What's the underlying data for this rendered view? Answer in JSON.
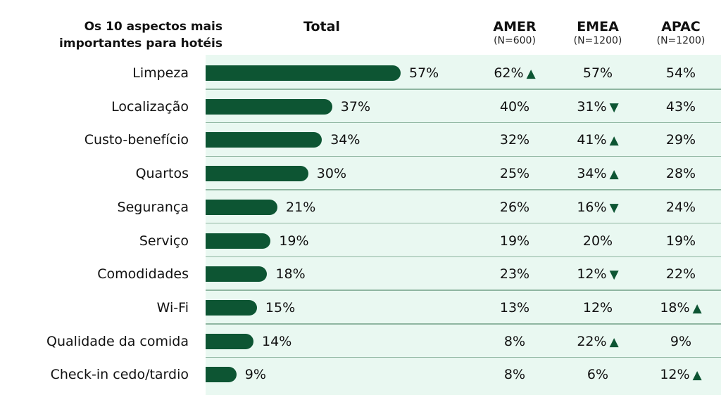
{
  "header": {
    "title_line1": "Os 10 aspectos mais",
    "title_line2": "importantes para hotéis",
    "total": "Total",
    "regions": [
      {
        "name": "AMER",
        "n": "(N=600)"
      },
      {
        "name": "EMEA",
        "n": "(N=1200)"
      },
      {
        "name": "APAC",
        "n": "(N=1200)"
      }
    ]
  },
  "chart_data": {
    "type": "bar",
    "orientation": "horizontal",
    "x_max": 100,
    "categories": [
      "Limpeza",
      "Localização",
      "Custo-benefício",
      "Quartos",
      "Segurança",
      "Serviço",
      "Comodidades",
      "Wi-Fi",
      "Qualidade da comida",
      "Check-in cedo/tardio"
    ],
    "series": [
      {
        "name": "Total",
        "values": [
          57,
          37,
          34,
          30,
          21,
          19,
          18,
          15,
          14,
          9
        ]
      }
    ],
    "bar_color": "#0d5533",
    "panel_color": "#e9f8f1",
    "rows": [
      {
        "label": "Limpeza",
        "total": "57%",
        "total_value": 57,
        "amer": "62%",
        "amer_arrow": "up",
        "emea": "57%",
        "emea_arrow": "",
        "apac": "54%",
        "apac_arrow": ""
      },
      {
        "label": "Localização",
        "total": "37%",
        "total_value": 37,
        "amer": "40%",
        "amer_arrow": "",
        "emea": "31%",
        "emea_arrow": "down",
        "apac": "43%",
        "apac_arrow": ""
      },
      {
        "label": "Custo-benefício",
        "total": "34%",
        "total_value": 34,
        "amer": "32%",
        "amer_arrow": "",
        "emea": "41%",
        "emea_arrow": "up",
        "apac": "29%",
        "apac_arrow": ""
      },
      {
        "label": "Quartos",
        "total": "30%",
        "total_value": 30,
        "amer": "25%",
        "amer_arrow": "",
        "emea": "34%",
        "emea_arrow": "up",
        "apac": "28%",
        "apac_arrow": ""
      },
      {
        "label": "Segurança",
        "total": "21%",
        "total_value": 21,
        "amer": "26%",
        "amer_arrow": "",
        "emea": "16%",
        "emea_arrow": "down",
        "apac": "24%",
        "apac_arrow": ""
      },
      {
        "label": "Serviço",
        "total": "19%",
        "total_value": 19,
        "amer": "19%",
        "amer_arrow": "",
        "emea": "20%",
        "emea_arrow": "",
        "apac": "19%",
        "apac_arrow": ""
      },
      {
        "label": "Comodidades",
        "total": "18%",
        "total_value": 18,
        "amer": "23%",
        "amer_arrow": "",
        "emea": "12%",
        "emea_arrow": "down",
        "apac": "22%",
        "apac_arrow": ""
      },
      {
        "label": "Wi-Fi",
        "total": "15%",
        "total_value": 15,
        "amer": "13%",
        "amer_arrow": "",
        "emea": "12%",
        "emea_arrow": "",
        "apac": "18%",
        "apac_arrow": "up"
      },
      {
        "label": "Qualidade da comida",
        "total": "14%",
        "total_value": 14,
        "amer": "8%",
        "amer_arrow": "",
        "emea": "22%",
        "emea_arrow": "up",
        "apac": "9%",
        "apac_arrow": ""
      },
      {
        "label": "Check-in cedo/tardio",
        "total": "9%",
        "total_value": 9,
        "amer": "8%",
        "amer_arrow": "",
        "emea": "6%",
        "emea_arrow": "",
        "apac": "12%",
        "apac_arrow": "up"
      }
    ]
  }
}
